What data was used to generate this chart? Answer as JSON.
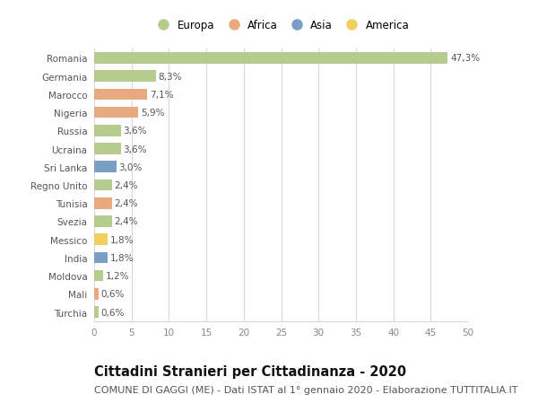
{
  "countries": [
    "Romania",
    "Germania",
    "Marocco",
    "Nigeria",
    "Russia",
    "Ucraina",
    "Sri Lanka",
    "Regno Unito",
    "Tunisia",
    "Svezia",
    "Messico",
    "India",
    "Moldova",
    "Mali",
    "Turchia"
  ],
  "values": [
    47.3,
    8.3,
    7.1,
    5.9,
    3.6,
    3.6,
    3.0,
    2.4,
    2.4,
    2.4,
    1.8,
    1.8,
    1.2,
    0.6,
    0.6
  ],
  "labels": [
    "47,3%",
    "8,3%",
    "7,1%",
    "5,9%",
    "3,6%",
    "3,6%",
    "3,0%",
    "2,4%",
    "2,4%",
    "2,4%",
    "1,8%",
    "1,8%",
    "1,2%",
    "0,6%",
    "0,6%"
  ],
  "continents": [
    "Europa",
    "Europa",
    "Africa",
    "Africa",
    "Europa",
    "Europa",
    "Asia",
    "Europa",
    "Africa",
    "Europa",
    "America",
    "Asia",
    "Europa",
    "Africa",
    "Europa"
  ],
  "colors": {
    "Europa": "#b5cc8e",
    "Africa": "#e8a97e",
    "Asia": "#7b9ec4",
    "America": "#f0d060"
  },
  "legend_order": [
    "Europa",
    "Africa",
    "Asia",
    "America"
  ],
  "title": "Cittadini Stranieri per Cittadinanza - 2020",
  "subtitle": "COMUNE DI GAGGI (ME) - Dati ISTAT al 1° gennaio 2020 - Elaborazione TUTTITALIA.IT",
  "xlim": [
    0,
    50
  ],
  "xticks": [
    0,
    5,
    10,
    15,
    20,
    25,
    30,
    35,
    40,
    45,
    50
  ],
  "background_color": "#ffffff",
  "grid_color": "#d8d8d8",
  "title_fontsize": 10.5,
  "subtitle_fontsize": 8,
  "label_fontsize": 7.5,
  "tick_fontsize": 7.5,
  "legend_fontsize": 8.5
}
